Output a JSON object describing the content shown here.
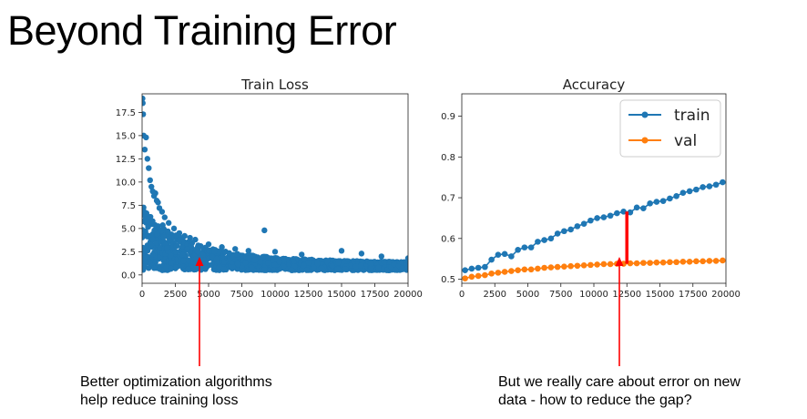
{
  "slide": {
    "title": "Beyond Training Error"
  },
  "colors": {
    "blue": "#1f77b4",
    "orange": "#ff7f0e",
    "annotation_red": "#ff0000"
  },
  "captions": {
    "left": [
      "Better optimization algorithms",
      "help reduce training loss"
    ],
    "right": [
      "But we really care about error on new",
      "data - how to reduce the gap?"
    ]
  },
  "chart_data": [
    {
      "type": "scatter",
      "title": "Train Loss",
      "xlabel": "",
      "ylabel": "",
      "xlim": [
        0,
        20000
      ],
      "ylim": [
        -0.9,
        19.5
      ],
      "xticks": [
        0,
        2500,
        5000,
        7500,
        10000,
        12500,
        15000,
        17500,
        20000
      ],
      "xtick_labels": [
        "0",
        "2500",
        "5000",
        "7500",
        "10000",
        "12500",
        "15000",
        "17500",
        "20000"
      ],
      "yticks": [
        0.0,
        2.5,
        5.0,
        7.5,
        10.0,
        12.5,
        15.0,
        17.5
      ],
      "ytick_labels": [
        "0.0",
        "2.5",
        "5.0",
        "7.5",
        "10.0",
        "12.5",
        "15.0",
        "17.5"
      ],
      "grid": false,
      "series": [
        {
          "color": "#1f77b4",
          "x": [
            30,
            50,
            80,
            120,
            200,
            300,
            400,
            500,
            600,
            700,
            800,
            900,
            1000,
            1100,
            1200,
            1300,
            1500,
            1700,
            2000,
            2400,
            2800,
            3200,
            3600,
            4000,
            5000,
            6000,
            7000,
            8000,
            9200,
            10000,
            12000,
            15000,
            16500,
            18000,
            20000
          ],
          "y": [
            19.0,
            18.5,
            17.3,
            15.0,
            13.5,
            14.8,
            12.5,
            11.5,
            10.2,
            9.5,
            9.0,
            8.5,
            8.8,
            8.0,
            7.8,
            7.2,
            6.8,
            6.2,
            5.6,
            5.0,
            4.5,
            4.2,
            4.0,
            3.8,
            3.3,
            3.0,
            2.8,
            2.6,
            4.8,
            2.5,
            2.2,
            2.6,
            2.3,
            2.0,
            1.8
          ]
        }
      ]
    },
    {
      "type": "line",
      "title": "Accuracy",
      "xlabel": "",
      "ylabel": "",
      "xlim": [
        0,
        20000
      ],
      "ylim": [
        0.49,
        0.955
      ],
      "xticks": [
        0,
        2500,
        5000,
        7500,
        10000,
        12500,
        15000,
        17500,
        20000
      ],
      "xtick_labels": [
        "0",
        "2500",
        "5000",
        "7500",
        "10000",
        "12500",
        "15000",
        "17500",
        "20000"
      ],
      "yticks": [
        0.5,
        0.6,
        0.7,
        0.8,
        0.9
      ],
      "ytick_labels": [
        "0.5",
        "0.6",
        "0.7",
        "0.8",
        "0.9"
      ],
      "grid": false,
      "legend_position": "top-right",
      "x": [
        250,
        750,
        1250,
        1750,
        2250,
        2750,
        3250,
        3750,
        4250,
        4750,
        5250,
        5750,
        6250,
        6750,
        7250,
        7750,
        8250,
        8750,
        9250,
        9750,
        10250,
        10750,
        11250,
        11750,
        12250,
        12750,
        13250,
        13750,
        14250,
        14750,
        15250,
        15750,
        16250,
        16750,
        17250,
        17750,
        18250,
        18750,
        19250,
        19750
      ],
      "series": [
        {
          "name": "train",
          "color": "#1f77b4",
          "values": [
            0.522,
            0.526,
            0.528,
            0.53,
            0.548,
            0.56,
            0.562,
            0.556,
            0.572,
            0.578,
            0.578,
            0.592,
            0.596,
            0.6,
            0.612,
            0.618,
            0.622,
            0.63,
            0.636,
            0.644,
            0.65,
            0.652,
            0.656,
            0.662,
            0.666,
            0.664,
            0.676,
            0.674,
            0.686,
            0.69,
            0.692,
            0.698,
            0.704,
            0.712,
            0.716,
            0.72,
            0.726,
            0.728,
            0.732,
            0.738
          ]
        },
        {
          "name": "val",
          "color": "#ff7f0e",
          "values": [
            0.502,
            0.506,
            0.508,
            0.51,
            0.514,
            0.516,
            0.518,
            0.52,
            0.522,
            0.524,
            0.524,
            0.526,
            0.528,
            0.529,
            0.53,
            0.531,
            0.532,
            0.533,
            0.534,
            0.535,
            0.536,
            0.537,
            0.537,
            0.538,
            0.538,
            0.539,
            0.539,
            0.54,
            0.54,
            0.541,
            0.541,
            0.542,
            0.542,
            0.543,
            0.543,
            0.544,
            0.544,
            0.545,
            0.545,
            0.546
          ]
        }
      ]
    }
  ]
}
